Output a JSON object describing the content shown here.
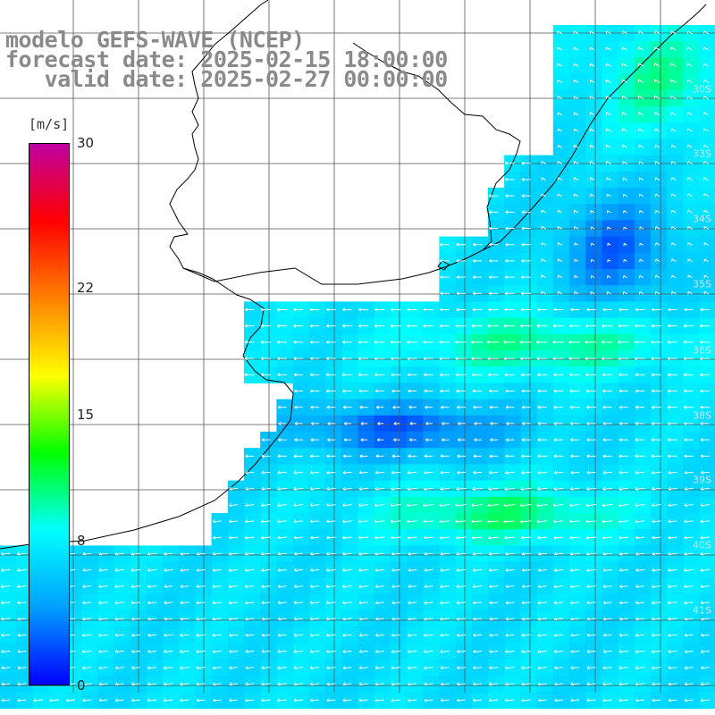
{
  "title": {
    "line1": "modelo GEFS-WAVE (NCEP)",
    "line2": "forecast date: 2025-02-15 18:00:00",
    "line3": "   valid date: 2025-02-27 00:00:00"
  },
  "colorbar": {
    "unit": "[m/s]",
    "ticks": [
      "30",
      "22",
      "15",
      "8",
      "0"
    ],
    "tick_values": [
      30,
      22,
      15,
      8,
      0
    ],
    "min": 0,
    "max": 30,
    "colors": [
      "#0000ff",
      "#00a0ff",
      "#00ffff",
      "#00ff00",
      "#ffff00",
      "#ff8000",
      "#ff0000",
      "#c000a0"
    ]
  },
  "lat_labels": [
    "30S",
    "33S",
    "34S",
    "35S",
    "36S",
    "38S",
    "39S",
    "40S",
    "41S"
  ],
  "lat_label_values": [
    -30,
    -33,
    -34,
    -35,
    -36,
    -38,
    -39,
    -40,
    -41
  ],
  "palette": {
    "land": "#ffffff",
    "grid": "#555555",
    "coast": "#000000",
    "arrows": "#ffffff"
  }
}
